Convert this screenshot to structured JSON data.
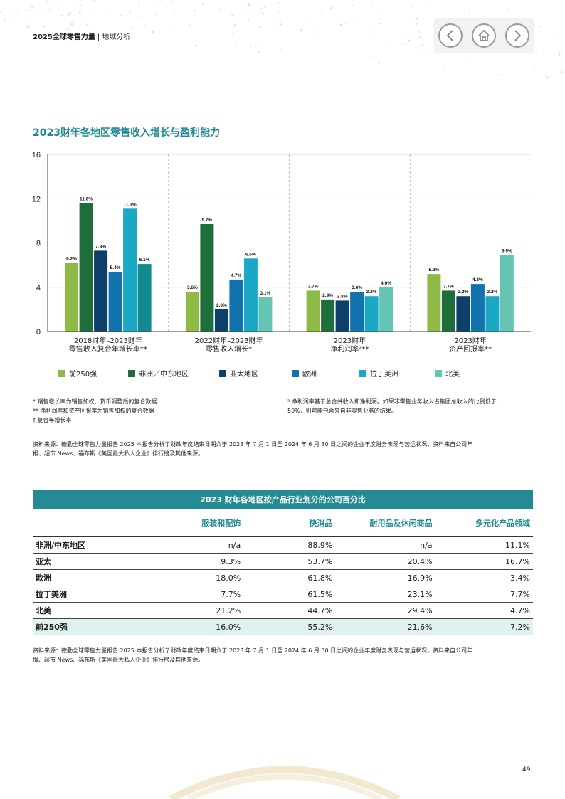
{
  "header": {
    "title": "2025全球零售力量",
    "separator": "|",
    "section": "地域分析"
  },
  "nav": {
    "prev_icon": "chevron-left-icon",
    "home_icon": "home-icon",
    "next_icon": "chevron-right-icon"
  },
  "chart_data": {
    "type": "bar",
    "title": "2023财年各地区零售收入增长与盈利能力",
    "ylim": [
      0,
      16
    ],
    "yticks": [
      "0",
      "4",
      "8",
      "12",
      "16"
    ],
    "categories": [
      [
        "2018财年–2023财年",
        "零售收入复合年增长率†*"
      ],
      [
        "2022财年–2023财年",
        "零售收入增长*"
      ],
      [
        "2023财年",
        "净利润率²**"
      ],
      [
        "2023财年",
        "资产回报率**"
      ]
    ],
    "series": [
      {
        "name": "前250强",
        "color": "#8dbb45",
        "values": [
          6.2,
          3.6,
          3.7,
          5.2
        ],
        "labels": [
          "6.2%",
          "3.6%",
          "3.7%",
          "5.2%"
        ]
      },
      {
        "name": "非洲／中东地区",
        "color": "#1e6e3a",
        "values": [
          11.6,
          9.7,
          2.9,
          3.7
        ],
        "labels": [
          "11.6%",
          "9.7%",
          "2.9%",
          "3.7%"
        ]
      },
      {
        "name": "亚太地区",
        "color": "#0e3f6b",
        "values": [
          7.3,
          2.0,
          2.8,
          3.2
        ],
        "labels": [
          "7.3%",
          "2.0%",
          "2.8%",
          "3.2%"
        ]
      },
      {
        "name": "欧洲",
        "color": "#1174ae",
        "values": [
          5.4,
          4.7,
          3.6,
          4.3
        ],
        "labels": [
          "5.4%",
          "4.7%",
          "3.6%",
          "4.3%"
        ]
      },
      {
        "name": "拉丁美洲",
        "color": "#1aa8c4",
        "values": [
          11.1,
          6.6,
          3.2,
          3.2
        ],
        "labels": [
          "11.1%",
          "6.6%",
          "3.2%",
          "3.2%"
        ]
      },
      {
        "name": "北美",
        "color": "#66c4b5",
        "values": [
          6.1,
          3.1,
          4.0,
          6.9
        ],
        "labels": [
          "6.1%",
          "3.1%",
          "4.0%",
          "6.9%"
        ]
      }
    ],
    "extra_series_color": "#138a8f",
    "legend": "bottom",
    "grid": true
  },
  "notes": {
    "n1": "* 销售增长率为销售加权、货币调整后的复合数据",
    "n2": "** 净利润率和资产回报率为销售加权的复合数据",
    "n3": "† 复合年增长率",
    "n4": "² 净利润率基于总合并收入和净利润。如果非零售业务收入占集团总收入的比例低于",
    "n5": "50%，则可能包含来自非零售业务的结果。",
    "source1": "资料来源：德勤全球零售力量报告 2025 本报告分析了财政年度结束日期介于 2023 年 7 月 1 日至 2024 年 6 月 30 日之间的企业年度财务表现与营运状况，资料来自公司年",
    "source2": "报、超市 News、福布斯《美国最大私人企业》排行榜及其他来源。"
  },
  "table": {
    "title": "2023 财年各地区按产品行业划分的公司百分比",
    "columns": [
      "",
      "服装和配饰",
      "快消品",
      "耐用品及休闲商品",
      "多元化产品领域"
    ],
    "rows": [
      [
        "非洲/中东地区",
        "n/a",
        "88.9%",
        "n/a",
        "11.1%"
      ],
      [
        "亚太",
        "9.3%",
        "53.7%",
        "20.4%",
        "16.7%"
      ],
      [
        "欧洲",
        "18.0%",
        "61.8%",
        "16.9%",
        "3.4%"
      ],
      [
        "拉丁美洲",
        "7.7%",
        "61.5%",
        "23.1%",
        "7.7%"
      ],
      [
        "北美",
        "21.2%",
        "44.7%",
        "29.4%",
        "4.7%"
      ],
      [
        "前250强",
        "16.0%",
        "55.2%",
        "21.6%",
        "7.2%"
      ]
    ],
    "source1": "资料来源：德勤全球零售力量报告 2025 本报告分析了财政年度结束日期介于 2023 年 7 月 1 日至 2024 年 6 月 30 日之间的企业年度财务表现与营运状况，资料来自公司年",
    "source2": "报、超市 News、福布斯《美国最大私人企业》排行榜及其他来源。"
  },
  "page_number": "49"
}
